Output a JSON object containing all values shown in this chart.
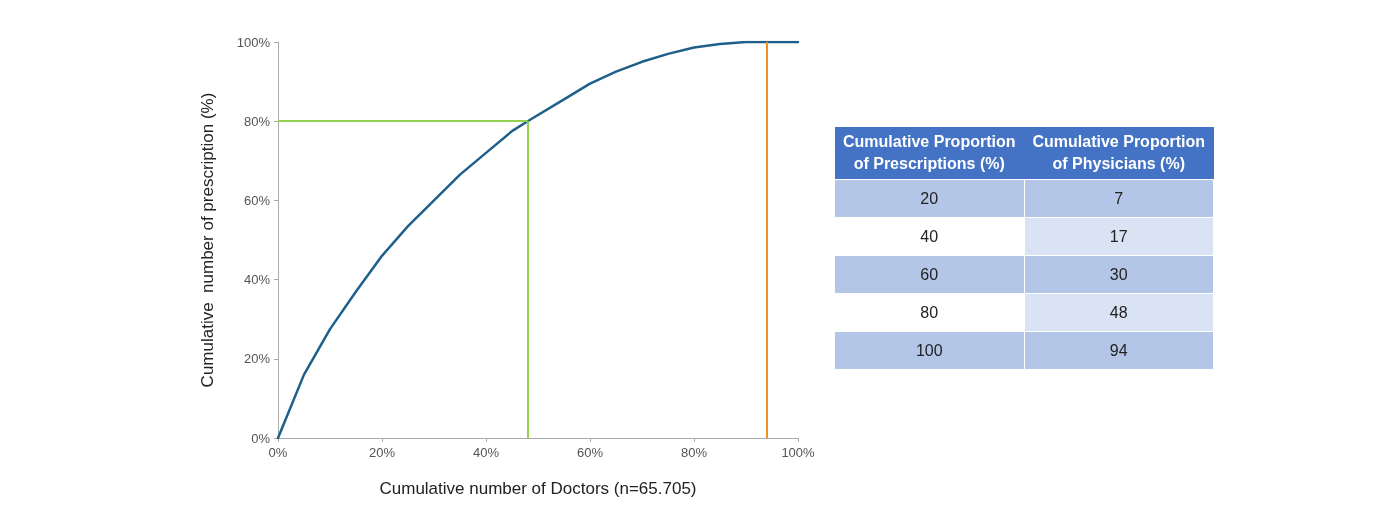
{
  "chart_data": [
    {
      "type": "line",
      "xlabel": "Cumulative number of Doctors (n=65.705)",
      "ylabel": "Cumulative  number of prescription (%)",
      "x": [
        0,
        5,
        10,
        15,
        20,
        25,
        30,
        35,
        40,
        45,
        48,
        55,
        60,
        65,
        70,
        75,
        80,
        85,
        90,
        95,
        100
      ],
      "series": [
        {
          "color": "#1f5f8b",
          "values": [
            0,
            16,
            27.5,
            37,
            46,
            53.5,
            60,
            66.5,
            72,
            77.5,
            80,
            85.5,
            89.5,
            92.5,
            95,
            97,
            98.6,
            99.5,
            100,
            100,
            100
          ]
        }
      ],
      "xlim": [
        0,
        100
      ],
      "ylim": [
        0,
        100
      ],
      "xticks": [
        {
          "value": 0,
          "label": "0%"
        },
        {
          "value": 20,
          "label": "20%"
        },
        {
          "value": 40,
          "label": "40%"
        },
        {
          "value": 60,
          "label": "60%"
        },
        {
          "value": 80,
          "label": "80%"
        },
        {
          "value": 100,
          "label": "100%"
        }
      ],
      "yticks": [
        {
          "value": 0,
          "label": "0%"
        },
        {
          "value": 20,
          "label": "20%"
        },
        {
          "value": 40,
          "label": "40%"
        },
        {
          "value": 60,
          "label": "60%"
        },
        {
          "value": 80,
          "label": "80%"
        },
        {
          "value": 100,
          "label": "100%"
        }
      ],
      "ref_lines": [
        {
          "axis": "y",
          "value": 80,
          "color": "#92d050"
        },
        {
          "axis": "x",
          "value": 48,
          "color": "#92d050"
        },
        {
          "axis": "x",
          "value": 94,
          "color": "#f4901e"
        }
      ],
      "grid": false,
      "marker": "none",
      "line_style": "solid"
    },
    {
      "type": "heatmap",
      "categories": [
        "Cumulative Proportion of Prescriptions (%)",
        "Cumulative Proportion of Physicians (%)"
      ],
      "y_categories": [
        null,
        null,
        null,
        null,
        null
      ],
      "cells": [
        [
          20,
          7
        ],
        [
          40,
          17
        ],
        [
          60,
          30
        ],
        [
          80,
          48
        ],
        [
          100,
          94
        ]
      ],
      "data_labels": true
    }
  ]
}
